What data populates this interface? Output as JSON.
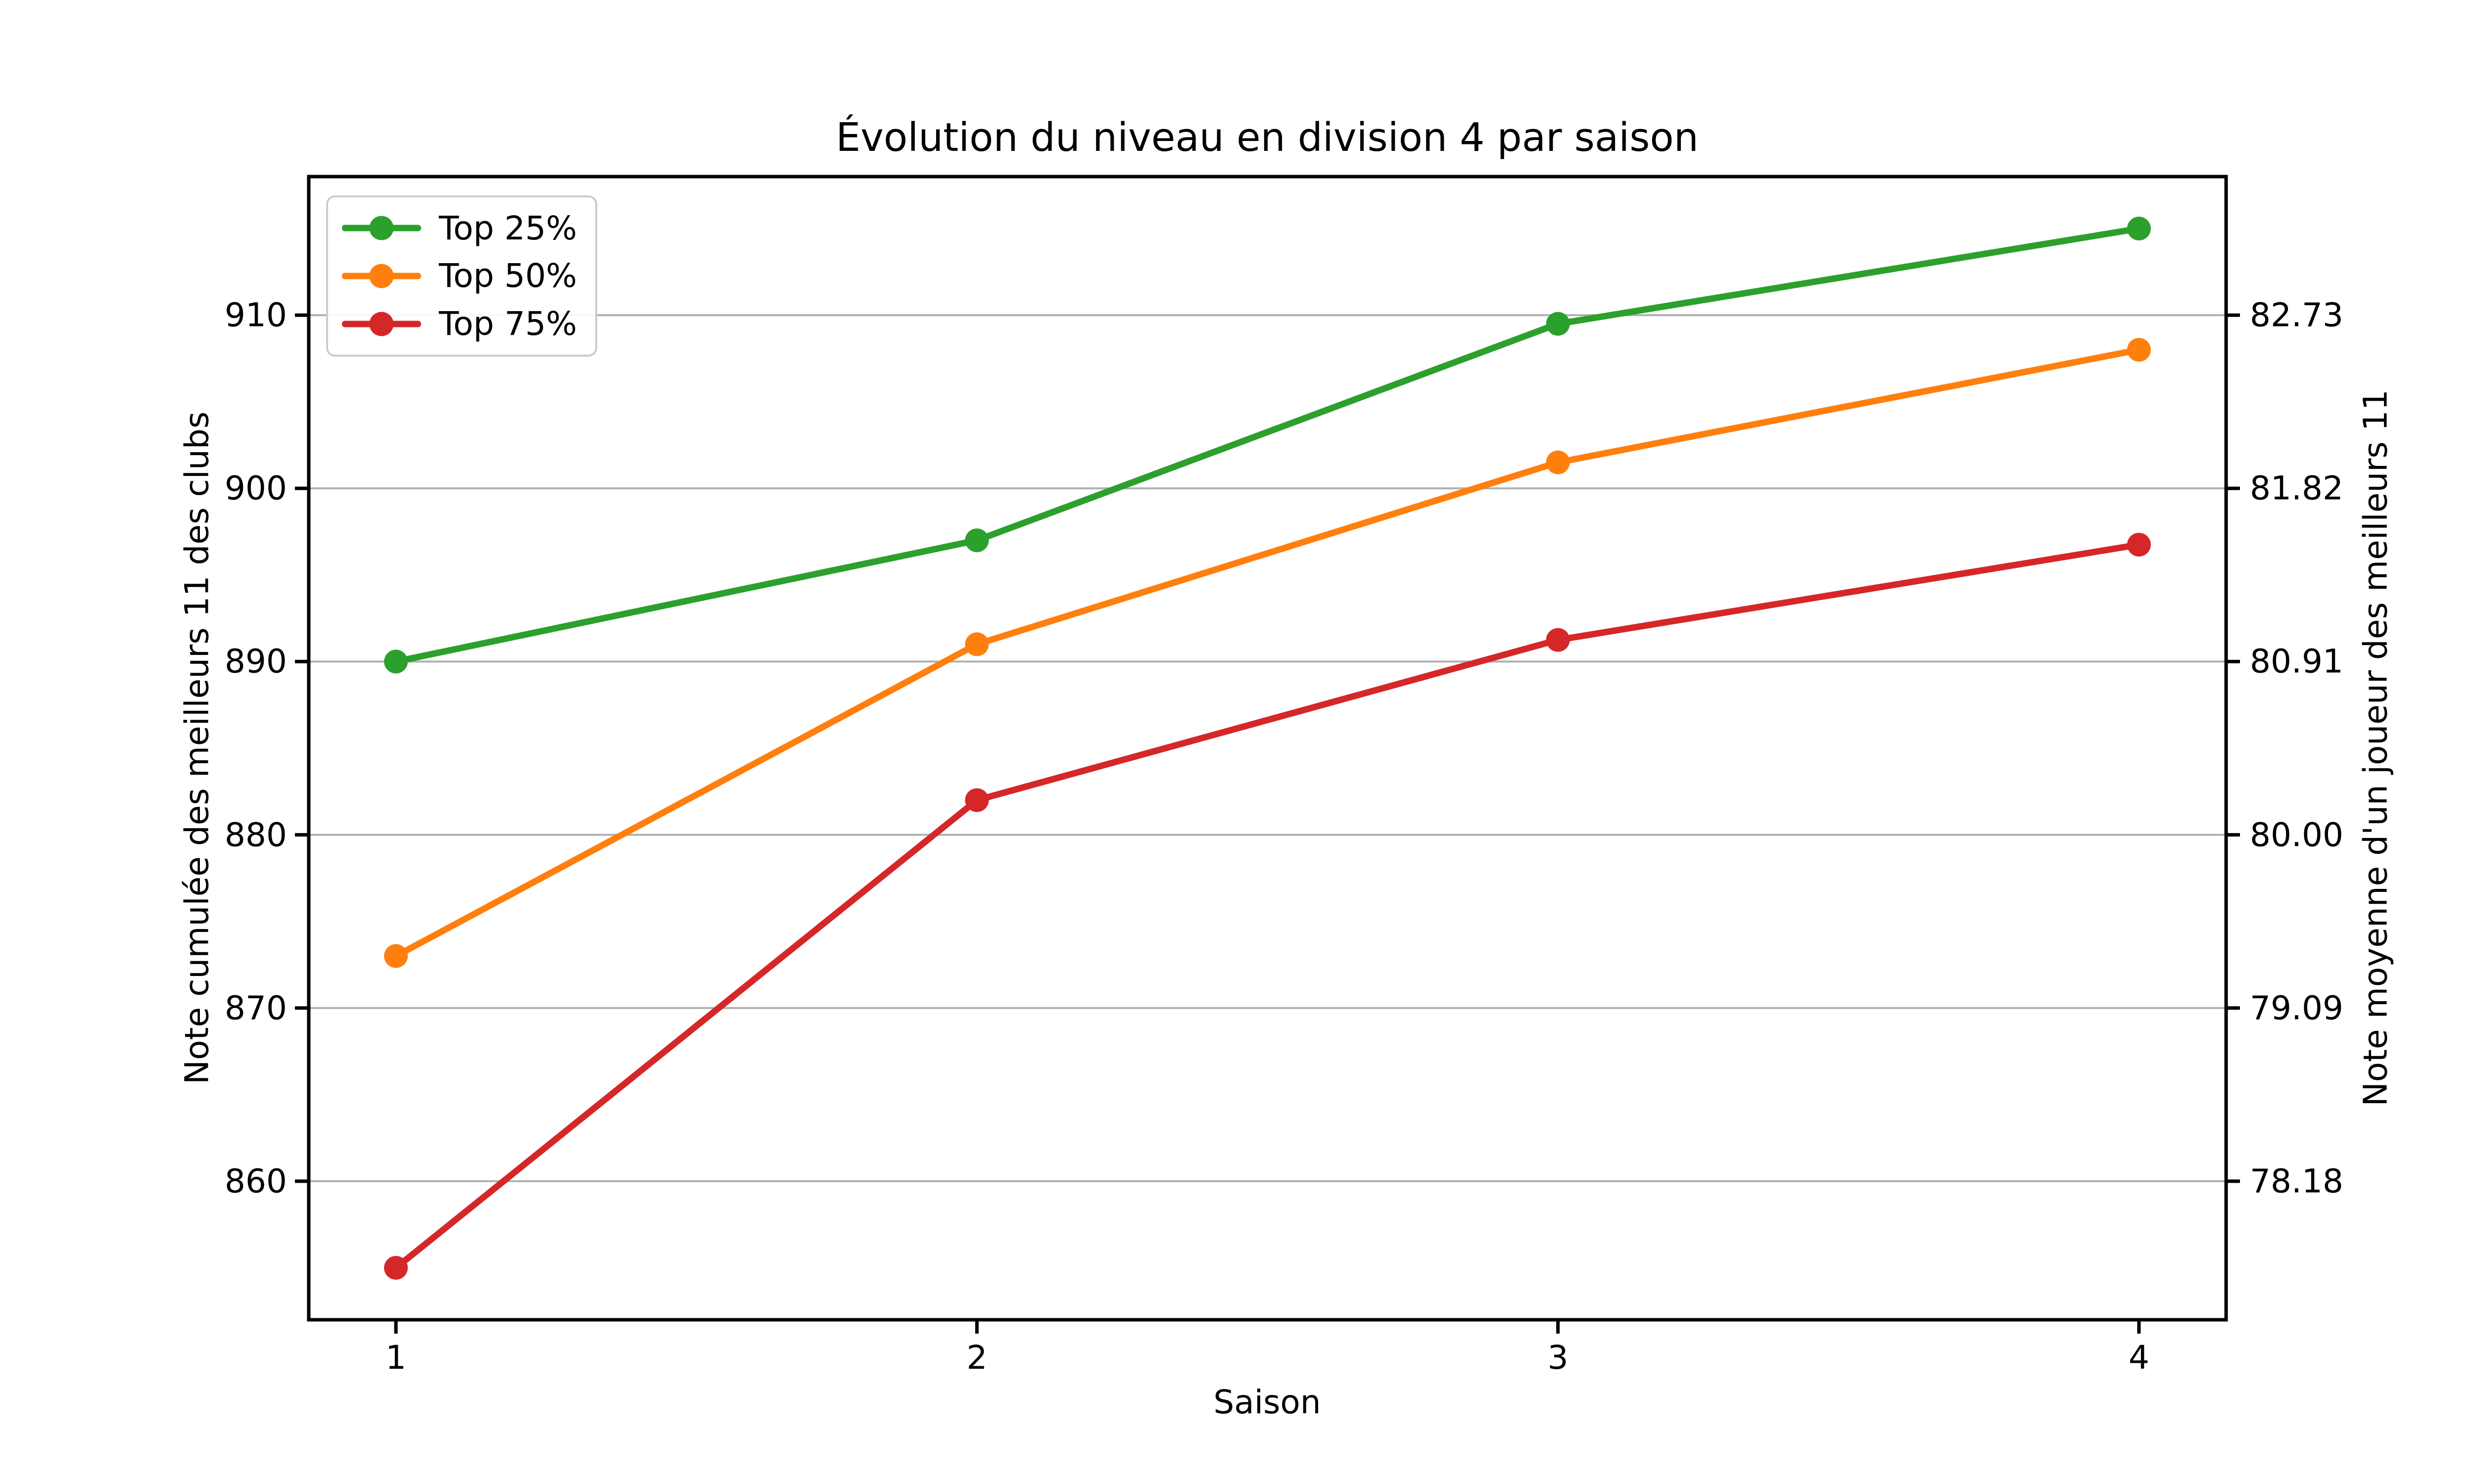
{
  "chart_data": {
    "type": "line",
    "title": "Évolution du niveau en division 4 par saison",
    "xlabel": "Saison",
    "ylabel_left": "Note cumulée des meilleurs 11 des clubs",
    "ylabel_right": "Note moyenne d'un joueur des meilleurs 11",
    "x": [
      1,
      2,
      3,
      4
    ],
    "xtick_labels": [
      "1",
      "2",
      "3",
      "4"
    ],
    "ytick_values": [
      860,
      870,
      880,
      890,
      900,
      910
    ],
    "ytick_labels_left": [
      "860",
      "870",
      "880",
      "890",
      "900",
      "910"
    ],
    "ytick_labels_right": [
      "78.18",
      "79.09",
      "80.00",
      "80.91",
      "81.82",
      "82.73"
    ],
    "xlim": [
      0.85,
      4.15
    ],
    "ylim": [
      852,
      918
    ],
    "grid": "horizontal-only",
    "grid_color": "#b0b0b0",
    "axis_color": "#000000",
    "background_color": "#ffffff",
    "legend_position": "upper-left",
    "series": [
      {
        "name": "Top 25%",
        "color": "#2ca02c",
        "values": [
          890,
          897,
          909.5,
          915
        ]
      },
      {
        "name": "Top 50%",
        "color": "#ff7f0e",
        "values": [
          873,
          891,
          901.5,
          908
        ]
      },
      {
        "name": "Top 75%",
        "color": "#d62728",
        "values": [
          855,
          882,
          891.25,
          896.75
        ]
      }
    ]
  }
}
